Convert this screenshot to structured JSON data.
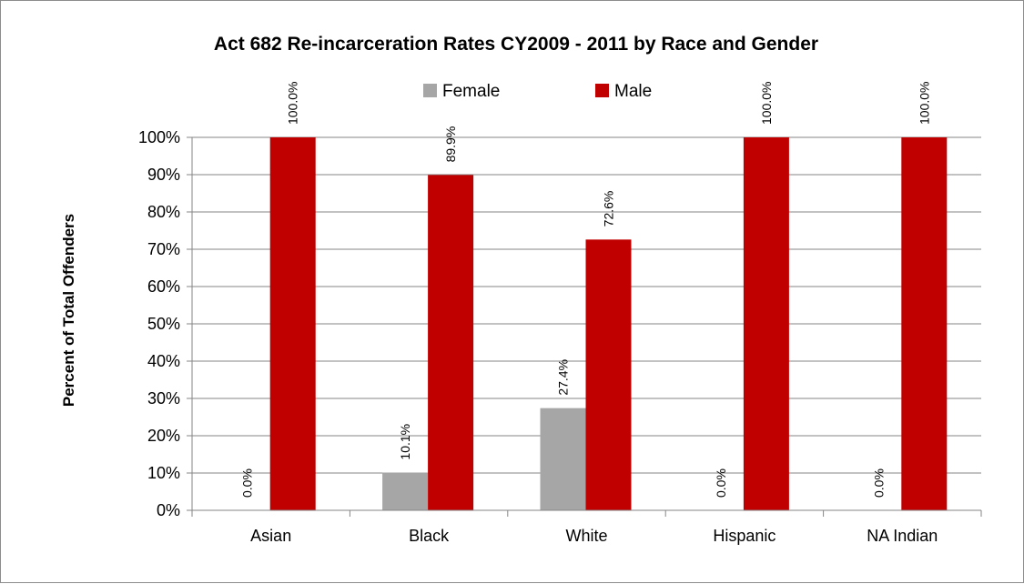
{
  "chart_data": {
    "type": "bar",
    "title": "Act 682 Re-incarceration Rates CY2009 - 2011 by Race and Gender",
    "ylabel": "Percent of Total Offenders",
    "xlabel": "",
    "categories": [
      "Asian",
      "Black",
      "White",
      "Hispanic",
      "NA Indian"
    ],
    "series": [
      {
        "name": "Female",
        "color": "#a6a6a6",
        "values": [
          0.0,
          10.1,
          27.4,
          0.0,
          0.0
        ],
        "labels": [
          "0.0%",
          "10.1%",
          "27.4%",
          "0.0%",
          "0.0%"
        ]
      },
      {
        "name": "Male",
        "color": "#c00000",
        "values": [
          100.0,
          89.9,
          72.6,
          100.0,
          100.0
        ],
        "labels": [
          "100.0%",
          "89.9%",
          "72.6%",
          "100.0%",
          "100.0%"
        ]
      }
    ],
    "ylim": [
      0,
      100
    ],
    "yticks": [
      0,
      10,
      20,
      30,
      40,
      50,
      60,
      70,
      80,
      90,
      100
    ],
    "ytick_labels": [
      "0%",
      "10%",
      "20%",
      "30%",
      "40%",
      "50%",
      "60%",
      "70%",
      "80%",
      "90%",
      "100%"
    ],
    "grid": true,
    "legend_position": "top-center",
    "gridline_color": "#868686",
    "axis_color": "#868686",
    "frame_color": "#8c8c8c"
  }
}
